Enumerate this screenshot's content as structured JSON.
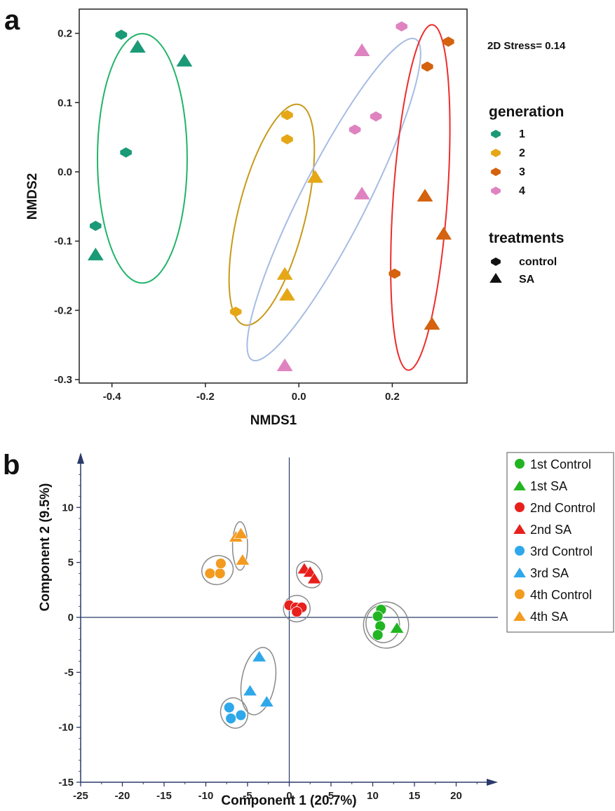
{
  "chart_data": [
    {
      "type": "scatter",
      "panel_label": "a",
      "xlabel": "NMDS1",
      "ylabel": "NMDS2",
      "xlim": [
        -0.47,
        0.36
      ],
      "ylim": [
        -0.305,
        0.235
      ],
      "xticks": [
        -0.4,
        -0.2,
        0.0,
        0.2
      ],
      "xtick_labels": [
        "-0.4",
        "-0.2",
        "0.0",
        "0.2"
      ],
      "yticks": [
        -0.3,
        -0.2,
        -0.1,
        0.0,
        0.1,
        0.2
      ],
      "ytick_labels": [
        "-0.3",
        "-0.2",
        "-0.1",
        "0.0",
        "0.1",
        "0.2"
      ],
      "annotation": "2D Stress= 0.14",
      "grid": false,
      "legend_placement": "right",
      "legend": {
        "generation_title": "generation",
        "generation_entries": [
          {
            "label": "1",
            "color": "#1a9a76"
          },
          {
            "label": "2",
            "color": "#e6a717"
          },
          {
            "label": "3",
            "color": "#d4620e"
          },
          {
            "label": "4",
            "color": "#df83c0"
          }
        ],
        "treatment_title": "treatments",
        "treatment_entries": [
          {
            "label": "control",
            "shape": "diamond"
          },
          {
            "label": "SA",
            "shape": "triangle"
          }
        ]
      },
      "series": [
        {
          "generation": "1",
          "color": "#1a9a76",
          "points": [
            {
              "x": -0.38,
              "y": 0.198,
              "shape": "diamond"
            },
            {
              "x": -0.345,
              "y": 0.18,
              "shape": "triangle"
            },
            {
              "x": -0.245,
              "y": 0.16,
              "shape": "triangle"
            },
            {
              "x": -0.37,
              "y": 0.028,
              "shape": "diamond"
            },
            {
              "x": -0.435,
              "y": -0.078,
              "shape": "diamond"
            },
            {
              "x": -0.435,
              "y": -0.12,
              "shape": "triangle"
            }
          ]
        },
        {
          "generation": "2",
          "color": "#e6a717",
          "points": [
            {
              "x": -0.025,
              "y": 0.082,
              "shape": "diamond"
            },
            {
              "x": -0.025,
              "y": 0.047,
              "shape": "diamond"
            },
            {
              "x": 0.035,
              "y": -0.008,
              "shape": "triangle"
            },
            {
              "x": -0.03,
              "y": -0.148,
              "shape": "triangle"
            },
            {
              "x": -0.025,
              "y": -0.178,
              "shape": "triangle"
            },
            {
              "x": -0.135,
              "y": -0.202,
              "shape": "diamond"
            }
          ]
        },
        {
          "generation": "3",
          "color": "#d4620e",
          "points": [
            {
              "x": 0.32,
              "y": 0.188,
              "shape": "diamond"
            },
            {
              "x": 0.275,
              "y": 0.152,
              "shape": "diamond"
            },
            {
              "x": 0.27,
              "y": -0.035,
              "shape": "triangle"
            },
            {
              "x": 0.31,
              "y": -0.09,
              "shape": "triangle"
            },
            {
              "x": 0.205,
              "y": -0.147,
              "shape": "diamond"
            },
            {
              "x": 0.285,
              "y": -0.22,
              "shape": "triangle"
            }
          ]
        },
        {
          "generation": "4",
          "color": "#df83c0",
          "points": [
            {
              "x": 0.22,
              "y": 0.21,
              "shape": "diamond"
            },
            {
              "x": 0.135,
              "y": 0.175,
              "shape": "triangle"
            },
            {
              "x": 0.165,
              "y": 0.08,
              "shape": "diamond"
            },
            {
              "x": 0.12,
              "y": 0.061,
              "shape": "diamond"
            },
            {
              "x": 0.135,
              "y": -0.032,
              "shape": "triangle"
            },
            {
              "x": -0.03,
              "y": -0.28,
              "shape": "triangle"
            }
          ]
        }
      ],
      "ellipses": [
        {
          "color": "#21b36a",
          "cx": -0.335,
          "cy": 0.0195,
          "rx": 0.096,
          "ry": 0.18,
          "angle": 0
        },
        {
          "color": "#c79a1a",
          "cx": -0.058,
          "cy": -0.062,
          "rx": 0.072,
          "ry": 0.164,
          "angle": 14
        },
        {
          "color": "#a7bce3",
          "cx": 0.075,
          "cy": -0.04,
          "rx": 0.07,
          "ry": 0.26,
          "angle": 27
        },
        {
          "color": "#ee2c2c",
          "cx": 0.26,
          "cy": -0.037,
          "rx": 0.058,
          "ry": 0.25,
          "angle": 4
        }
      ]
    },
    {
      "type": "scatter",
      "panel_label": "b",
      "xlabel": "Component 1 (20.7%)",
      "ylabel": "Component 2 (9.5%)",
      "xlim": [
        -25,
        25
      ],
      "ylim": [
        -15,
        15
      ],
      "xticks": [
        -25,
        -20,
        -15,
        -10,
        -5,
        0,
        5,
        10,
        15,
        20
      ],
      "xtick_labels": [
        "-25",
        "-20",
        "-15",
        "-10",
        "-5",
        "0",
        "5",
        "10",
        "15",
        "20"
      ],
      "yticks": [
        -15,
        -10,
        -5,
        0,
        5,
        10
      ],
      "ytick_labels": [
        "-15",
        "-10",
        "-5",
        "0",
        "5",
        "10"
      ],
      "grid": false,
      "legend_placement": "right",
      "series": [
        {
          "name": "1st Control",
          "color": "#22b522",
          "shape": "circle",
          "points": [
            [
              11,
              0.7
            ],
            [
              10.6,
              0.1
            ],
            [
              10.9,
              -0.8
            ],
            [
              10.6,
              -1.6
            ]
          ]
        },
        {
          "name": "1st SA",
          "color": "#22b522",
          "shape": "triangle",
          "points": [
            [
              12.9,
              -1.0
            ]
          ]
        },
        {
          "name": "2nd Control",
          "color": "#e8201c",
          "shape": "circle",
          "points": [
            [
              0,
              1.1
            ],
            [
              0.8,
              0.9
            ],
            [
              1.5,
              0.9
            ],
            [
              0.9,
              0.5
            ]
          ]
        },
        {
          "name": "2nd SA",
          "color": "#e8201c",
          "shape": "triangle",
          "points": [
            [
              1.8,
              4.4
            ],
            [
              2.5,
              4.1
            ],
            [
              3.0,
              3.5
            ]
          ]
        },
        {
          "name": "3rd Control",
          "color": "#2ea8ea",
          "shape": "circle",
          "points": [
            [
              -7.2,
              -8.2
            ],
            [
              -7.0,
              -9.2
            ],
            [
              -5.8,
              -8.9
            ]
          ]
        },
        {
          "name": "3rd SA",
          "color": "#2ea8ea",
          "shape": "triangle",
          "points": [
            [
              -3.6,
              -3.6
            ],
            [
              -4.7,
              -6.7
            ],
            [
              -2.7,
              -7.7
            ]
          ]
        },
        {
          "name": "4th Control",
          "color": "#f39b1f",
          "shape": "circle",
          "points": [
            [
              -9.5,
              4.0
            ],
            [
              -8.3,
              4.0
            ],
            [
              -8.2,
              4.9
            ]
          ]
        },
        {
          "name": "4th SA",
          "color": "#f39b1f",
          "shape": "triangle",
          "points": [
            [
              -6.4,
              7.3
            ],
            [
              -5.8,
              7.6
            ],
            [
              -5.6,
              5.2
            ]
          ]
        }
      ],
      "ellipses": [
        {
          "cx": 11.2,
          "cy": -0.6,
          "rx": 2.0,
          "ry": 1.7,
          "angle": -10
        },
        {
          "cx": 11.6,
          "cy": -0.7,
          "rx": 2.7,
          "ry": 2.1,
          "angle": -10
        },
        {
          "cx": 0.9,
          "cy": 0.8,
          "rx": 1.6,
          "ry": 1.2,
          "angle": -15
        },
        {
          "cx": 2.4,
          "cy": 3.9,
          "rx": 1.4,
          "ry": 1.3,
          "angle": -40
        },
        {
          "cx": -6.6,
          "cy": -8.7,
          "rx": 1.6,
          "ry": 1.4,
          "angle": -20
        },
        {
          "cx": -3.7,
          "cy": -5.8,
          "rx": 2.0,
          "ry": 3.1,
          "angle": 10
        },
        {
          "cx": -8.6,
          "cy": 4.3,
          "rx": 1.9,
          "ry": 1.3,
          "angle": -20
        },
        {
          "cx": -5.9,
          "cy": 6.5,
          "rx": 0.9,
          "ry": 2.2,
          "angle": 0
        }
      ]
    }
  ]
}
